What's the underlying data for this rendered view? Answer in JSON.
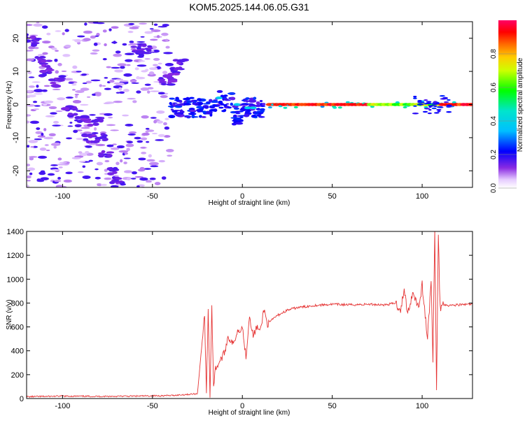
{
  "title": "KOM5.2025.144.06.05.G31",
  "chart_data": [
    {
      "type": "heatmap",
      "xlabel": "Height of straight line (km)",
      "ylabel": "Frequency (Hz)",
      "xlim": [
        -120,
        128
      ],
      "ylim": [
        -25,
        25
      ],
      "x_ticks": [
        -100,
        -50,
        0,
        50,
        100
      ],
      "y_ticks": [
        -20,
        -10,
        0,
        10,
        20
      ],
      "colorbar": {
        "label": "Normalized spectral amplitude",
        "range": [
          0,
          1
        ],
        "ticks": [
          0.0,
          0.2,
          0.4,
          0.6,
          0.8
        ],
        "tick_labels": [
          "0.0",
          "0.2",
          "0.4",
          "0.6",
          "0.8"
        ]
      },
      "features": [
        {
          "name": "scattered clusters",
          "x_range": [
            -120,
            -40
          ],
          "freq_range": [
            -25,
            25
          ],
          "amplitude": 0.15
        },
        {
          "name": "descending branch",
          "points": [
            [
              -80,
              -5
            ],
            [
              -78,
              -10
            ],
            [
              -76,
              -15
            ],
            [
              -73,
              -20
            ],
            [
              -70,
              -23
            ]
          ],
          "amplitude": 0.15
        },
        {
          "name": "onset region",
          "x_range": [
            -40,
            12
          ],
          "freq_range": [
            -6,
            3
          ],
          "amplitude": 0.2
        },
        {
          "name": "steady carrier",
          "x_range": [
            15,
            128
          ],
          "frequency": 0,
          "amplitude": 0.9
        }
      ]
    },
    {
      "type": "line",
      "xlabel": "Height of straight line (km)",
      "ylabel": "SNR (v/v)",
      "xlim": [
        -120,
        128
      ],
      "ylim": [
        0,
        1400
      ],
      "x_ticks": [
        -100,
        -50,
        0,
        50,
        100
      ],
      "y_ticks": [
        0,
        200,
        400,
        600,
        800,
        1000,
        1200,
        1400
      ],
      "series": [
        {
          "color": "#e53333",
          "x": [
            -120,
            -100,
            -80,
            -60,
            -40,
            -25,
            -21,
            -20,
            -19,
            -18,
            -17,
            -16,
            -15,
            -13,
            -10,
            -8,
            -5,
            -3,
            0,
            2,
            4,
            6,
            8,
            10,
            12,
            14,
            16,
            18,
            20,
            25,
            30,
            40,
            50,
            60,
            70,
            80,
            85,
            88,
            90,
            92,
            95,
            98,
            100,
            103,
            105,
            106,
            107,
            108,
            109,
            110,
            111,
            112,
            115,
            120,
            128
          ],
          "y": [
            15,
            20,
            18,
            20,
            25,
            40,
            700,
            50,
            750,
            20,
            780,
            100,
            250,
            300,
            380,
            520,
            450,
            560,
            600,
            350,
            700,
            520,
            600,
            560,
            750,
            620,
            650,
            680,
            700,
            740,
            760,
            780,
            790,
            785,
            790,
            785,
            800,
            750,
            900,
            720,
            900,
            760,
            950,
            500,
            1000,
            300,
            1400,
            100,
            1350,
            760,
            780,
            790,
            780,
            785,
            790
          ]
        }
      ]
    }
  ]
}
